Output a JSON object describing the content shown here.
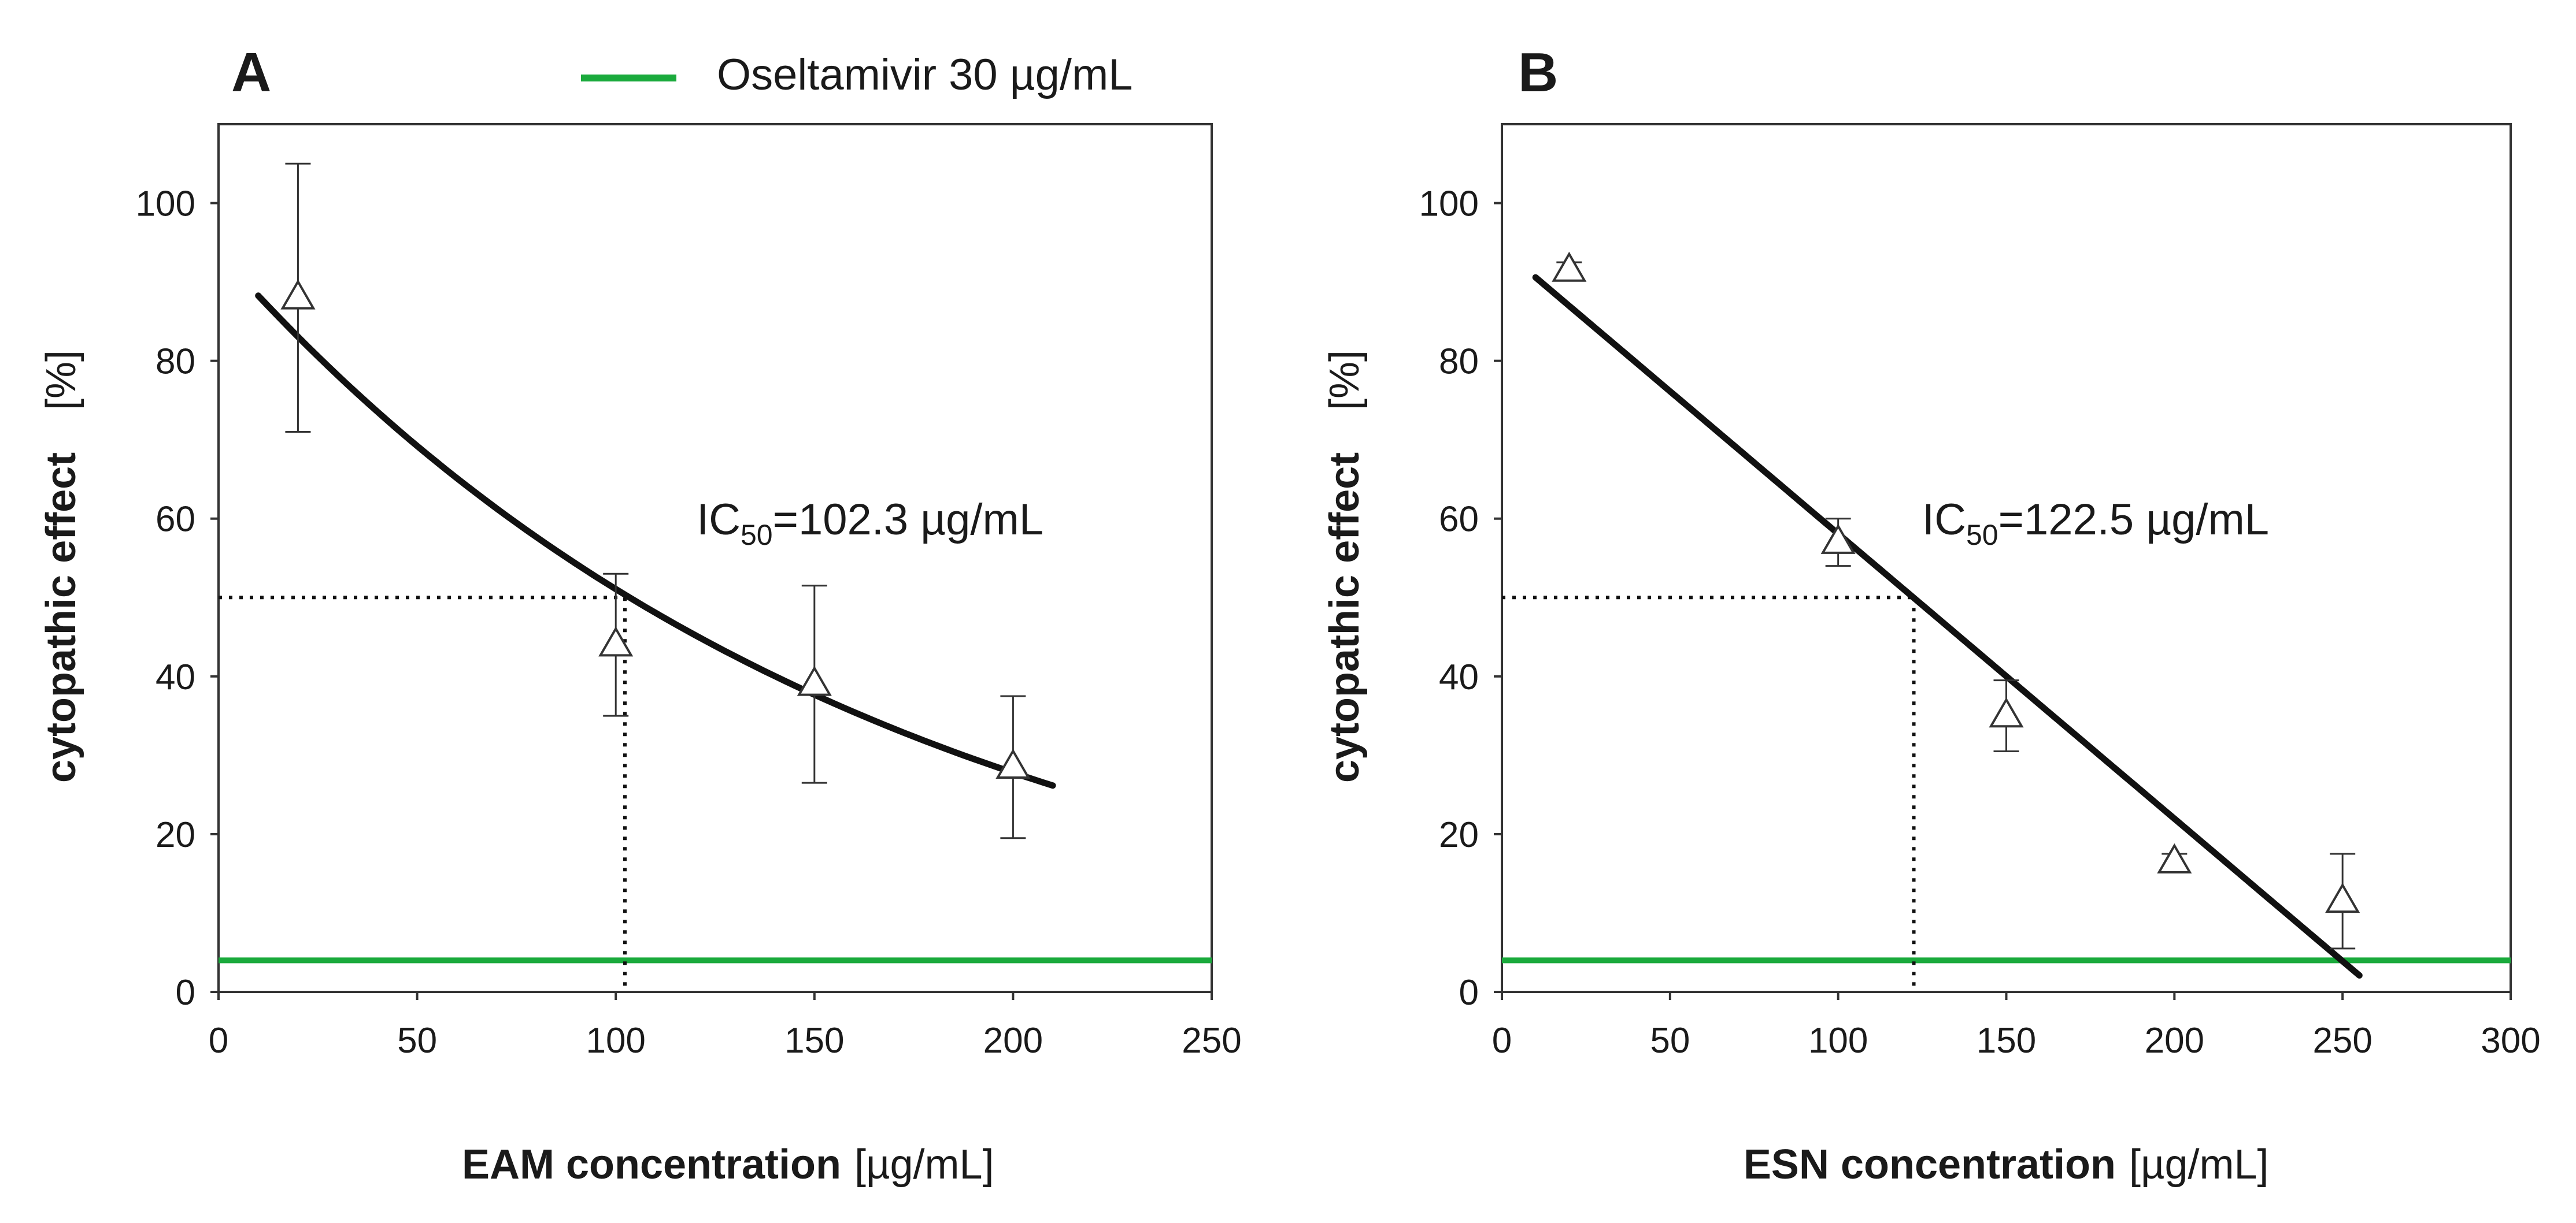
{
  "legend": {
    "label": "Oseltamivir 30 µg/mL",
    "color": "#1aaa3c"
  },
  "colors": {
    "reference_line": "#1aaa3c",
    "fit_line": "#111111",
    "markers": "#333333"
  },
  "chart_data": [
    {
      "type": "scatter",
      "panel": "A",
      "xlabel_bold": "EAM concentration",
      "xlabel_unit": "[µg/mL]",
      "ylabel_bold": "cytopathic effect",
      "ylabel_unit": "[%]",
      "xlim": [
        0,
        250
      ],
      "ylim": [
        0,
        110
      ],
      "x_ticks": [
        0,
        50,
        100,
        150,
        200,
        250
      ],
      "y_ticks": [
        0,
        20,
        40,
        60,
        80,
        100
      ],
      "points": [
        {
          "x": 20,
          "y": 88,
          "err_low": 71,
          "err_high": 105
        },
        {
          "x": 100,
          "y": 44,
          "err_low": 35,
          "err_high": 53
        },
        {
          "x": 150,
          "y": 39,
          "err_low": 26.5,
          "err_high": 51.5
        },
        {
          "x": 200,
          "y": 28.5,
          "err_low": 19.5,
          "err_high": 37.5
        }
      ],
      "fit": {
        "model": "exponential",
        "a": 93.8,
        "b": 0.00608,
        "x_range": [
          10,
          210
        ]
      },
      "reference_y": 4,
      "ic50": {
        "x": 102.3,
        "y": 50
      },
      "annotation": {
        "prefix": "IC",
        "subscript": "50",
        "suffix": "=102.3 µg/mL",
        "x": 120,
        "y": 60
      }
    },
    {
      "type": "scatter",
      "panel": "B",
      "xlabel_bold": "ESN concentration",
      "xlabel_unit": "[µg/mL]",
      "ylabel_bold": "cytopathic effect",
      "ylabel_unit": "[%]",
      "xlim": [
        0,
        300
      ],
      "ylim": [
        0,
        110
      ],
      "x_ticks": [
        0,
        50,
        100,
        150,
        200,
        250,
        300
      ],
      "y_ticks": [
        0,
        20,
        40,
        60,
        80,
        100
      ],
      "points": [
        {
          "x": 20,
          "y": 91.5,
          "err_low": 90.5,
          "err_high": 92.5
        },
        {
          "x": 100,
          "y": 57,
          "err_low": 54,
          "err_high": 60
        },
        {
          "x": 150,
          "y": 35,
          "err_low": 30.5,
          "err_high": 39.5
        },
        {
          "x": 200,
          "y": 16.5,
          "err_low": 15.5,
          "err_high": 17.5
        },
        {
          "x": 250,
          "y": 11.5,
          "err_low": 5.5,
          "err_high": 17.5
        }
      ],
      "fit": {
        "model": "linear",
        "slope": -0.3612,
        "intercept": 94.2,
        "x_range": [
          10,
          255
        ]
      },
      "reference_y": 4,
      "ic50": {
        "x": 122.5,
        "y": 50
      },
      "annotation": {
        "prefix": "IC",
        "subscript": "50",
        "suffix": "=122.5 µg/mL",
        "x": 125,
        "y": 60
      }
    }
  ]
}
